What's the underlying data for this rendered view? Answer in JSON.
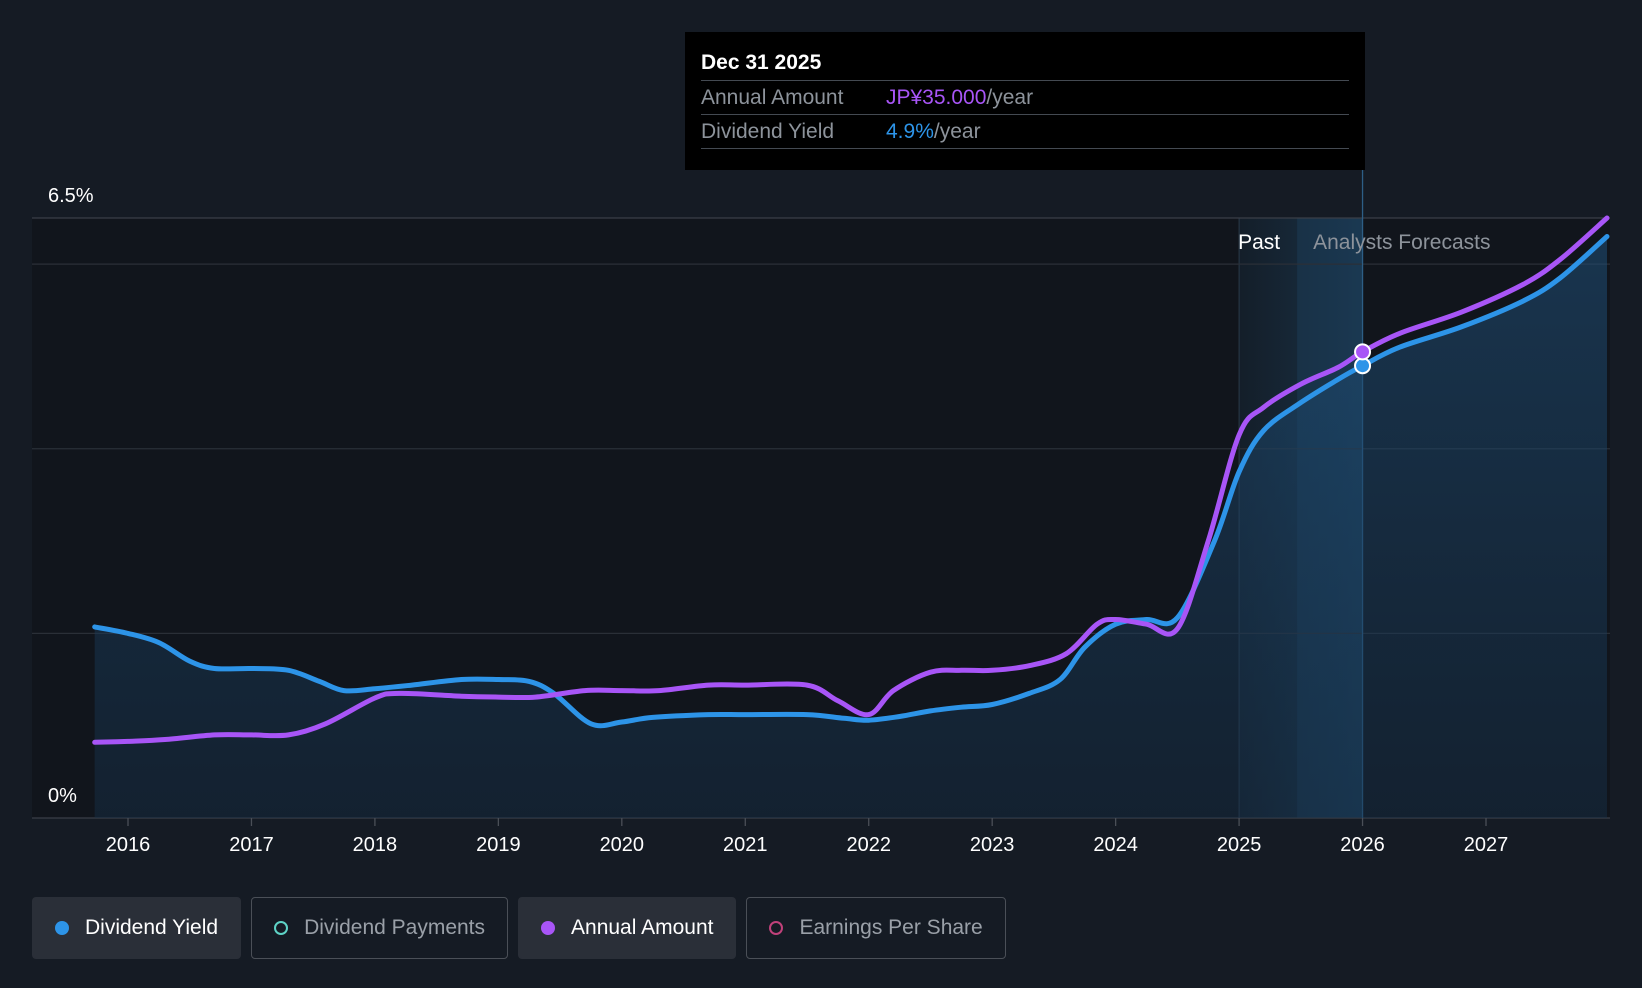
{
  "tooltip": {
    "date": "Dec 31 2025",
    "annual_label": "Annual Amount",
    "annual_value": "JP¥35.000",
    "annual_unit": "/year",
    "yield_label": "Dividend Yield",
    "yield_value": "4.9%",
    "yield_unit": "/year"
  },
  "legend": [
    {
      "label": "Dividend Yield",
      "color": "#2d94e8",
      "active": true,
      "filled": true
    },
    {
      "label": "Dividend Payments",
      "color": "#5ed3c6",
      "active": false,
      "filled": false
    },
    {
      "label": "Annual Amount",
      "color": "#a855f7",
      "active": true,
      "filled": true
    },
    {
      "label": "Earnings Per Share",
      "color": "#c0417a",
      "active": false,
      "filled": false
    }
  ],
  "chart_data": {
    "type": "line",
    "y_top_label": "6.5%",
    "y_bottom_label": "0%",
    "ylim": [
      0,
      6.5
    ],
    "xlim": [
      2015.25,
      2027.98
    ],
    "x_ticks": [
      "2016",
      "2017",
      "2018",
      "2019",
      "2020",
      "2021",
      "2022",
      "2023",
      "2024",
      "2025",
      "2026",
      "2027"
    ],
    "x_tick_values": [
      2016,
      2017,
      2018,
      2019,
      2020,
      2021,
      2022,
      2023,
      2024,
      2025,
      2026,
      2027
    ],
    "grid": true,
    "regions": {
      "past_label": "Past",
      "forecast_label": "Analysts Forecasts",
      "past_start": 2025.0,
      "forecast_start": 2025.47,
      "hover_x": 2026.0
    },
    "series": [
      {
        "name": "Dividend Yield",
        "color": "#2d94e8",
        "filled": true,
        "points": [
          [
            2015.73,
            2.07
          ],
          [
            2016.0,
            2.0
          ],
          [
            2016.25,
            1.9
          ],
          [
            2016.5,
            1.7
          ],
          [
            2016.7,
            1.62
          ],
          [
            2017.0,
            1.62
          ],
          [
            2017.3,
            1.6
          ],
          [
            2017.55,
            1.48
          ],
          [
            2017.75,
            1.38
          ],
          [
            2018.0,
            1.4
          ],
          [
            2018.3,
            1.44
          ],
          [
            2018.7,
            1.5
          ],
          [
            2019.0,
            1.5
          ],
          [
            2019.25,
            1.48
          ],
          [
            2019.45,
            1.35
          ],
          [
            2019.75,
            1.02
          ],
          [
            2020.0,
            1.04
          ],
          [
            2020.25,
            1.09
          ],
          [
            2020.7,
            1.12
          ],
          [
            2021.0,
            1.12
          ],
          [
            2021.5,
            1.12
          ],
          [
            2021.8,
            1.08
          ],
          [
            2022.0,
            1.06
          ],
          [
            2022.25,
            1.1
          ],
          [
            2022.5,
            1.16
          ],
          [
            2022.75,
            1.2
          ],
          [
            2023.0,
            1.23
          ],
          [
            2023.3,
            1.35
          ],
          [
            2023.55,
            1.5
          ],
          [
            2023.75,
            1.85
          ],
          [
            2024.0,
            2.1
          ],
          [
            2024.25,
            2.15
          ],
          [
            2024.5,
            2.17
          ],
          [
            2024.8,
            3.0
          ],
          [
            2025.0,
            3.75
          ],
          [
            2025.2,
            4.2
          ],
          [
            2025.5,
            4.5
          ],
          [
            2025.8,
            4.75
          ],
          [
            2026.0,
            4.9
          ],
          [
            2026.3,
            5.1
          ],
          [
            2026.8,
            5.32
          ],
          [
            2027.3,
            5.6
          ],
          [
            2027.6,
            5.85
          ],
          [
            2027.98,
            6.3
          ]
        ]
      },
      {
        "name": "Annual Amount",
        "color": "#a855f7",
        "filled": false,
        "points": [
          [
            2015.73,
            0.82
          ],
          [
            2016.0,
            0.83
          ],
          [
            2016.3,
            0.85
          ],
          [
            2016.7,
            0.9
          ],
          [
            2017.0,
            0.9
          ],
          [
            2017.3,
            0.9
          ],
          [
            2017.6,
            1.02
          ],
          [
            2018.0,
            1.3
          ],
          [
            2018.2,
            1.35
          ],
          [
            2018.7,
            1.32
          ],
          [
            2019.0,
            1.31
          ],
          [
            2019.3,
            1.31
          ],
          [
            2019.7,
            1.38
          ],
          [
            2020.0,
            1.38
          ],
          [
            2020.3,
            1.38
          ],
          [
            2020.7,
            1.44
          ],
          [
            2021.0,
            1.44
          ],
          [
            2021.5,
            1.44
          ],
          [
            2021.75,
            1.27
          ],
          [
            2022.0,
            1.12
          ],
          [
            2022.2,
            1.38
          ],
          [
            2022.5,
            1.58
          ],
          [
            2022.75,
            1.6
          ],
          [
            2023.0,
            1.6
          ],
          [
            2023.3,
            1.65
          ],
          [
            2023.6,
            1.78
          ],
          [
            2023.85,
            2.1
          ],
          [
            2024.0,
            2.15
          ],
          [
            2024.25,
            2.1
          ],
          [
            2024.5,
            2.05
          ],
          [
            2024.75,
            3.0
          ],
          [
            2025.0,
            4.15
          ],
          [
            2025.2,
            4.45
          ],
          [
            2025.5,
            4.7
          ],
          [
            2025.8,
            4.88
          ],
          [
            2026.0,
            5.05
          ],
          [
            2026.3,
            5.25
          ],
          [
            2026.8,
            5.48
          ],
          [
            2027.3,
            5.78
          ],
          [
            2027.6,
            6.05
          ],
          [
            2027.98,
            6.5
          ]
        ]
      }
    ]
  }
}
